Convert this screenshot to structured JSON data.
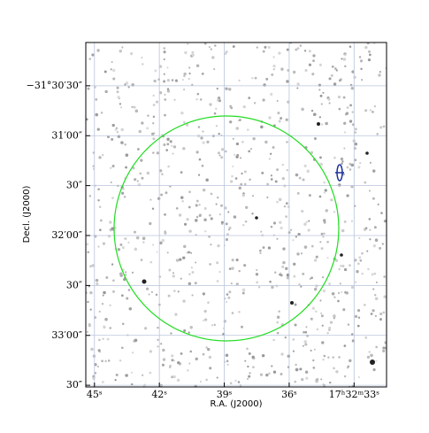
{
  "chart_data": {
    "type": "skymap",
    "xlabel": "R.A. (J2000)",
    "ylabel": "Decl. (J2000)",
    "xlim": [
      45.4,
      31.5
    ],
    "xticks": [
      {
        "value": 45,
        "label": "45ˢ"
      },
      {
        "value": 42,
        "label": "42ˢ"
      },
      {
        "value": 39,
        "label": "39ˢ"
      },
      {
        "value": 36,
        "label": "36ˢ"
      },
      {
        "value": 33,
        "label": "17ʰ32ᵐ33ˢ"
      }
    ],
    "ylim": [
      -31.55861,
      -31.50111
    ],
    "yticks": [
      {
        "value": -31.50833,
        "label": "−31°30′30″"
      },
      {
        "value": -31.51667,
        "label": "31′00″"
      },
      {
        "value": -31.525,
        "label": "30″"
      },
      {
        "value": -31.53333,
        "label": "32′00″"
      },
      {
        "value": -31.54167,
        "label": "30″"
      },
      {
        "value": -31.55,
        "label": "33′00″"
      },
      {
        "value": -31.55833,
        "label": "30″"
      }
    ],
    "grid": true
  }
}
